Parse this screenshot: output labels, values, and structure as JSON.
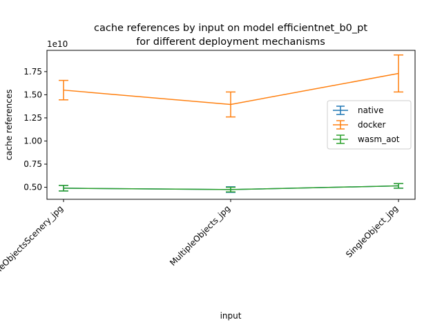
{
  "chart_data": {
    "type": "line",
    "title_line1": "cache references by input on model efficientnet_b0_pt",
    "title_line2": "for different deployment mechanisms",
    "xlabel": "input",
    "ylabel": "cache references",
    "y_offset_label": "1e10",
    "y_scale": 10000000000,
    "categories": [
      "MultipleObjectsScenery_jpg",
      "MultipleObjects_jpg",
      "SingleObject_jpg"
    ],
    "ylim": [
      0.37,
      1.98
    ],
    "yticks": [
      0.5,
      0.75,
      1.0,
      1.25,
      1.5,
      1.75
    ],
    "ytick_labels": [
      "0.50",
      "0.75",
      "1.00",
      "1.25",
      "1.50",
      "1.75"
    ],
    "grid": false,
    "legend_position": "center-right",
    "series": [
      {
        "name": "native",
        "color": "#1f77b4",
        "values": [
          0.49,
          0.475,
          0.515
        ],
        "errors": [
          0.03,
          0.03,
          0.025
        ]
      },
      {
        "name": "docker",
        "color": "#ff7f0e",
        "values": [
          1.55,
          1.395,
          1.73
        ],
        "errors": [
          0.105,
          0.135,
          0.2
        ]
      },
      {
        "name": "wasm_aot",
        "color": "#2ca02c",
        "values": [
          0.49,
          0.475,
          0.515
        ],
        "errors": [
          0.03,
          0.025,
          0.025
        ]
      }
    ]
  }
}
